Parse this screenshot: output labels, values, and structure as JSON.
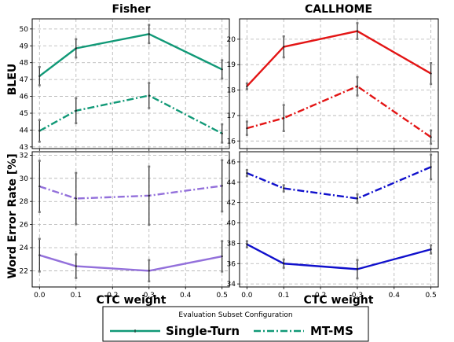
{
  "figure": {
    "ylabel_top": "BLEU",
    "ylabel_bottom": "Word Error Rate [%]",
    "xlabel": "CTC weight"
  },
  "legend": {
    "title": "Evaluation Subset Configuration",
    "entries": [
      {
        "label": "Single-Turn",
        "style": "solid"
      },
      {
        "label": "MT-MS",
        "style": "dashdot"
      }
    ]
  },
  "colors": {
    "fisher_bleu": "#119977",
    "fisher_wer": "#9370DB",
    "callhome_bleu": "#E31515",
    "callhome_wer": "#1010CC",
    "grid": "#b0b0b0",
    "errorbar": "#222222"
  },
  "chart_data": [
    {
      "type": "line",
      "title": "Fisher",
      "ylabel": "BLEU",
      "xlabel": "",
      "x": [
        0.0,
        0.1,
        0.3,
        0.5
      ],
      "xticks": [
        "0.0",
        "0.1",
        "0.2",
        "0.3",
        "0.4",
        "0.5"
      ],
      "xlim": [
        -0.02,
        0.52
      ],
      "ylim": [
        42.9,
        50.6
      ],
      "yticks": [
        43,
        44,
        45,
        46,
        47,
        48,
        49,
        50
      ],
      "grid": true,
      "series": [
        {
          "name": "Single-Turn",
          "style": "solid",
          "values": [
            47.2,
            48.85,
            49.7,
            47.6
          ],
          "err": [
            0.6,
            0.6,
            0.6,
            0.6
          ]
        },
        {
          "name": "MT-MS",
          "style": "dashdot",
          "values": [
            43.95,
            45.15,
            46.05,
            43.8
          ],
          "err": [
            0.7,
            0.8,
            0.8,
            0.6
          ]
        }
      ]
    },
    {
      "type": "line",
      "title": "CALLHOME",
      "ylabel": "",
      "xlabel": "",
      "x": [
        0.0,
        0.1,
        0.3,
        0.5
      ],
      "xticks": [
        "0.0",
        "0.1",
        "0.2",
        "0.3",
        "0.4",
        "0.5"
      ],
      "xlim": [
        -0.02,
        0.52
      ],
      "ylim": [
        15.7,
        20.8
      ],
      "yticks": [
        16,
        17,
        18,
        19,
        20
      ],
      "grid": true,
      "series": [
        {
          "name": "Single-Turn",
          "style": "solid",
          "values": [
            18.15,
            19.7,
            20.32,
            18.65
          ],
          "err": [
            0.15,
            0.45,
            0.35,
            0.45
          ]
        },
        {
          "name": "MT-MS",
          "style": "dashdot",
          "values": [
            16.5,
            16.9,
            18.15,
            16.15
          ],
          "err": [
            0.3,
            0.55,
            0.4,
            0.3
          ]
        }
      ]
    },
    {
      "type": "line",
      "title": "",
      "ylabel": "Word Error Rate [%]",
      "xlabel": "CTC weight",
      "x": [
        0.0,
        0.1,
        0.3,
        0.5
      ],
      "xticks": [
        "0.0",
        "0.1",
        "0.2",
        "0.3",
        "0.4",
        "0.5"
      ],
      "xlim": [
        -0.02,
        0.52
      ],
      "ylim": [
        20.6,
        32.3
      ],
      "yticks": [
        22,
        24,
        26,
        28,
        30,
        32
      ],
      "grid": true,
      "series": [
        {
          "name": "MT-MS",
          "style": "dashdot",
          "values": [
            29.3,
            28.25,
            28.5,
            29.35
          ],
          "err": [
            2.3,
            2.3,
            2.6,
            2.3
          ]
        },
        {
          "name": "Single-Turn",
          "style": "solid",
          "values": [
            23.35,
            22.4,
            22.0,
            23.25
          ],
          "err": [
            1.5,
            1.1,
            1.0,
            1.4
          ]
        }
      ]
    },
    {
      "type": "line",
      "title": "",
      "ylabel": "",
      "xlabel": "CTC weight",
      "x": [
        0.0,
        0.1,
        0.3,
        0.5
      ],
      "xticks": [
        "0.0",
        "0.1",
        "0.2",
        "0.3",
        "0.4",
        "0.5"
      ],
      "xlim": [
        -0.02,
        0.52
      ],
      "ylim": [
        33.7,
        47.0
      ],
      "yticks": [
        34,
        36,
        38,
        40,
        42,
        44,
        46
      ],
      "grid": true,
      "series": [
        {
          "name": "MT-MS",
          "style": "dashdot",
          "values": [
            44.9,
            43.4,
            42.4,
            45.5
          ],
          "err": [
            0.4,
            0.4,
            0.5,
            1.3
          ]
        },
        {
          "name": "Single-Turn",
          "style": "solid",
          "values": [
            37.9,
            36.0,
            35.45,
            37.4
          ],
          "err": [
            0.4,
            0.5,
            1.0,
            0.5
          ]
        }
      ]
    }
  ]
}
